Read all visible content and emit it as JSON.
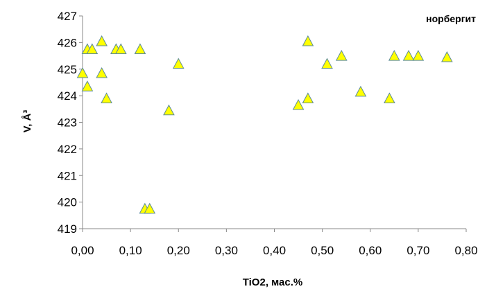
{
  "chart_data": {
    "type": "scatter",
    "title": "",
    "xlabel": "TiO2, мас.%",
    "ylabel": "V, Å³",
    "xlim": [
      0,
      0.8
    ],
    "ylim": [
      419,
      427
    ],
    "xticks": [
      "0,00",
      "0,10",
      "0,20",
      "0,30",
      "0,40",
      "0,50",
      "0,60",
      "0,70",
      "0,80"
    ],
    "yticks": [
      "419",
      "420",
      "421",
      "422",
      "423",
      "424",
      "425",
      "426",
      "427"
    ],
    "grid": false,
    "legend_position": "top-right",
    "series": [
      {
        "name": "норбергит",
        "marker": "triangle",
        "color": "#ffff00",
        "edge_color": "#5b8a9a",
        "points": [
          [
            0.0,
            424.85
          ],
          [
            0.01,
            425.75
          ],
          [
            0.01,
            424.35
          ],
          [
            0.02,
            425.75
          ],
          [
            0.04,
            426.05
          ],
          [
            0.04,
            424.85
          ],
          [
            0.05,
            423.9
          ],
          [
            0.07,
            425.75
          ],
          [
            0.08,
            425.75
          ],
          [
            0.12,
            425.75
          ],
          [
            0.13,
            419.75
          ],
          [
            0.14,
            419.75
          ],
          [
            0.18,
            423.45
          ],
          [
            0.2,
            425.2
          ],
          [
            0.45,
            423.65
          ],
          [
            0.47,
            426.05
          ],
          [
            0.47,
            423.9
          ],
          [
            0.51,
            425.2
          ],
          [
            0.54,
            425.5
          ],
          [
            0.58,
            424.15
          ],
          [
            0.64,
            423.9
          ],
          [
            0.65,
            425.5
          ],
          [
            0.68,
            425.5
          ],
          [
            0.7,
            425.5
          ],
          [
            0.76,
            425.45
          ]
        ]
      }
    ]
  }
}
